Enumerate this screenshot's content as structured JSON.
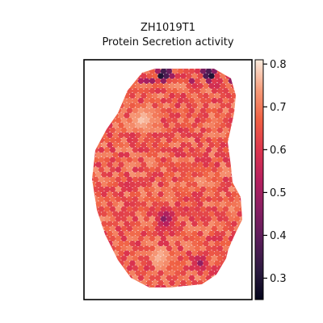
{
  "chart_data": {
    "type": "heatmap",
    "title": "ZH1019T1",
    "subtitle": "Protein Secretion activity",
    "colorbar": {
      "colormap": "rocket",
      "vmin": 0.25,
      "vmax": 0.81,
      "ticks": [
        {
          "value": 0.3,
          "label": "0.3"
        },
        {
          "value": 0.4,
          "label": "0.4"
        },
        {
          "value": 0.5,
          "label": "0.5"
        },
        {
          "value": 0.6,
          "label": "0.6"
        },
        {
          "value": 0.7,
          "label": "0.7"
        },
        {
          "value": 0.8,
          "label": "0.8"
        }
      ]
    },
    "spot_value_summary": {
      "typical": 0.66,
      "min": 0.27,
      "max": 0.8
    },
    "low_activity_regions": [
      {
        "location": "top edge",
        "value": 0.27
      },
      {
        "location": "center",
        "value": 0.42
      },
      {
        "location": "lower right",
        "value": 0.45
      }
    ],
    "high_activity_regions": [
      {
        "location": "upper left",
        "value": 0.79
      },
      {
        "location": "lower center",
        "value": 0.8
      }
    ]
  }
}
